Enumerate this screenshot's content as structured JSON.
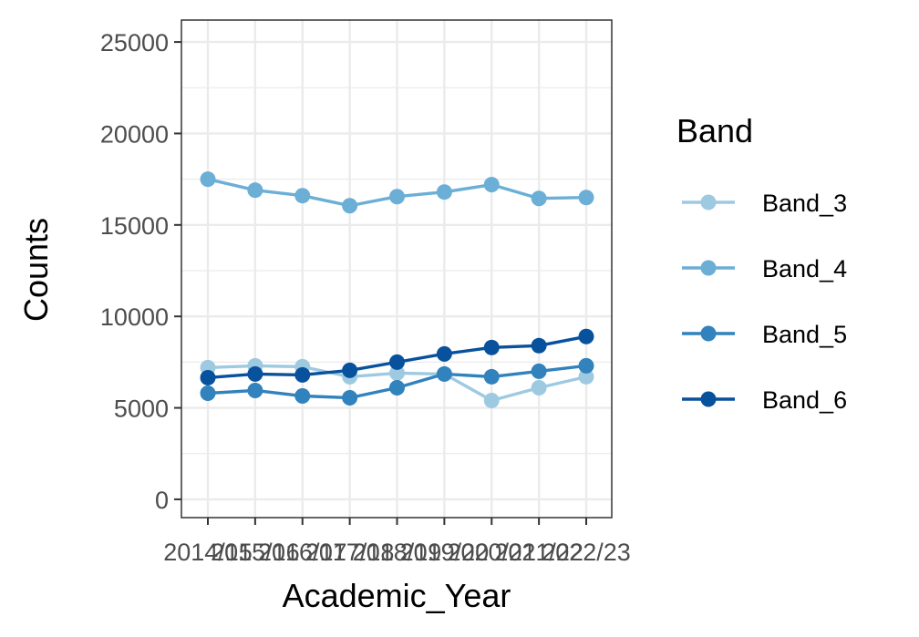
{
  "chart_data": {
    "type": "line",
    "title": "",
    "xlabel": "Academic_Year",
    "ylabel": "Counts",
    "categories": [
      "2014/15",
      "2015/16",
      "2016/17",
      "2017/18",
      "2018/19",
      "2019/20",
      "2020/21",
      "2021/22",
      "2022/23"
    ],
    "ylim": [
      -1000,
      26200
    ],
    "yticks": [
      0,
      5000,
      10000,
      15000,
      20000,
      25000
    ],
    "ytick_labels": [
      "0",
      "5000",
      "10000",
      "15000",
      "20000",
      "25000"
    ],
    "grid": true,
    "legend": {
      "title": "Band",
      "position": "right"
    },
    "series": [
      {
        "name": "Band_3",
        "color": "#9ecae1",
        "values": [
          7200,
          7300,
          7250,
          6700,
          6900,
          6850,
          5400,
          6100,
          6700
        ]
      },
      {
        "name": "Band_4",
        "color": "#6baed6",
        "values": [
          17500,
          16900,
          16600,
          16050,
          16550,
          16800,
          17200,
          16450,
          16500
        ]
      },
      {
        "name": "Band_5",
        "color": "#3182bd",
        "values": [
          5800,
          5950,
          5650,
          5550,
          6100,
          6850,
          6700,
          7000,
          7300
        ]
      },
      {
        "name": "Band_6",
        "color": "#08519c",
        "values": [
          6650,
          6850,
          6800,
          7050,
          7500,
          7950,
          8300,
          8400,
          8900
        ]
      }
    ]
  }
}
